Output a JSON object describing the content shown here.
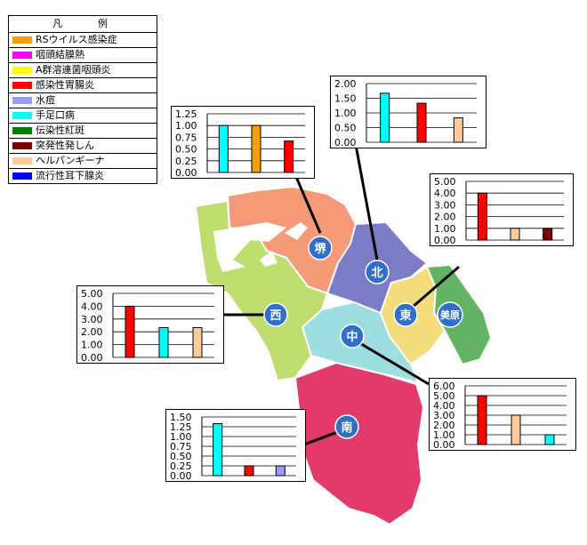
{
  "legend": {
    "title": "凡　　例",
    "items": [
      {
        "label": "RSウイルス感染症",
        "color": "#f5a000"
      },
      {
        "label": "咽頭結膜熱",
        "color": "#ff00ff"
      },
      {
        "label": "A群溶連菌咽頭炎",
        "color": "#ffff00"
      },
      {
        "label": "感染性胃腸炎",
        "color": "#ff0000"
      },
      {
        "label": "水痘",
        "color": "#9999ff"
      },
      {
        "label": "手足口病",
        "color": "#00ffff"
      },
      {
        "label": "伝染性紅斑",
        "color": "#008000"
      },
      {
        "label": "突発性発しん",
        "color": "#800000"
      },
      {
        "label": "ヘルパンギーナ",
        "color": "#ffcc99"
      },
      {
        "label": "流行性耳下腺炎",
        "color": "#0000ff"
      }
    ]
  },
  "districts": [
    {
      "label": "堺",
      "color": "#f49a78"
    },
    {
      "label": "北",
      "color": "#7b7bc8"
    },
    {
      "label": "東",
      "color": "#f3dc7c"
    },
    {
      "label": "美原",
      "color": "#62b462"
    },
    {
      "label": "中",
      "color": "#9edede"
    },
    {
      "label": "西",
      "color": "#bfdc6f"
    },
    {
      "label": "南",
      "color": "#e23a6a"
    }
  ],
  "chart_data": [
    {
      "type": "bar",
      "district": "堺",
      "categories": [
        "手足口病",
        "RSウイルス感染症",
        "感染性胃腸炎"
      ],
      "values": [
        1.0,
        1.0,
        0.67
      ],
      "colors": [
        "#00ffff",
        "#f5a000",
        "#ff0000"
      ],
      "ylim": [
        0,
        1.25
      ],
      "ticks": [
        "1.25",
        "1.00",
        "0.75",
        "0.50",
        "0.25",
        "0.00"
      ]
    },
    {
      "type": "bar",
      "district": "北",
      "categories": [
        "手足口病",
        "感染性胃腸炎",
        "ヘルパンギーナ"
      ],
      "values": [
        1.67,
        1.33,
        0.83
      ],
      "colors": [
        "#00ffff",
        "#ff0000",
        "#ffcc99"
      ],
      "ylim": [
        0,
        2.0
      ],
      "ticks": [
        "2.00",
        "1.50",
        "1.00",
        "0.50",
        "0.00"
      ]
    },
    {
      "type": "bar",
      "district": "東",
      "categories": [
        "感染性胃腸炎",
        "ヘルパンギーナ",
        "突発性発しん"
      ],
      "values": [
        4.0,
        1.0,
        1.0
      ],
      "colors": [
        "#ff0000",
        "#ffcc99",
        "#800000"
      ],
      "ylim": [
        0,
        5.0
      ],
      "ticks": [
        "5.00",
        "4.00",
        "3.00",
        "2.00",
        "1.00",
        "0.00"
      ]
    },
    {
      "type": "bar",
      "district": "西",
      "categories": [
        "感染性胃腸炎",
        "手足口病",
        "ヘルパンギーナ"
      ],
      "values": [
        4.0,
        2.33,
        2.33
      ],
      "colors": [
        "#ff0000",
        "#00ffff",
        "#ffcc99"
      ],
      "ylim": [
        0,
        5.0
      ],
      "ticks": [
        "5.00",
        "4.00",
        "3.00",
        "2.00",
        "1.00",
        "0.00"
      ]
    },
    {
      "type": "bar",
      "district": "中",
      "categories": [
        "感染性胃腸炎",
        "ヘルパンギーナ",
        "手足口病"
      ],
      "values": [
        5.0,
        3.0,
        1.0
      ],
      "colors": [
        "#ff0000",
        "#ffcc99",
        "#00ffff"
      ],
      "ylim": [
        0,
        6.0
      ],
      "ticks": [
        "6.00",
        "5.00",
        "4.00",
        "3.00",
        "2.00",
        "1.00",
        "0.00"
      ]
    },
    {
      "type": "bar",
      "district": "南",
      "categories": [
        "手足口病",
        "感染性胃腸炎",
        "水痘"
      ],
      "values": [
        1.33,
        0.25,
        0.25
      ],
      "colors": [
        "#00ffff",
        "#ff0000",
        "#9999ff"
      ],
      "ylim": [
        0,
        1.5
      ],
      "ticks": [
        "1.50",
        "1.25",
        "1.00",
        "0.75",
        "0.50",
        "0.25",
        "0.00"
      ]
    }
  ]
}
